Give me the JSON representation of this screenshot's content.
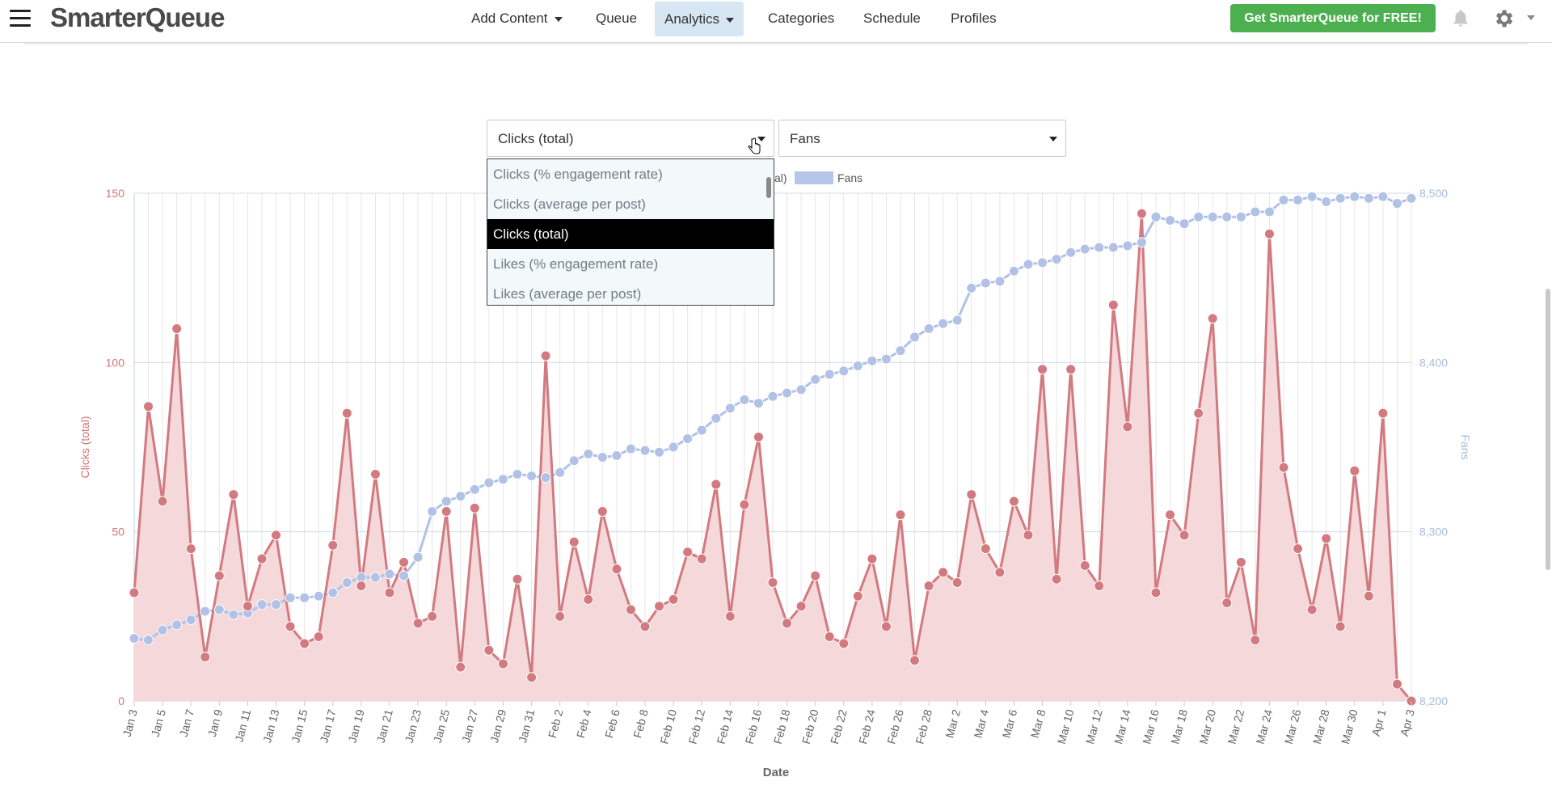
{
  "nav": {
    "logo": "SmarterQueue",
    "items": [
      {
        "label": "Add Content",
        "dropdown": true
      },
      {
        "label": "Queue",
        "dropdown": false
      },
      {
        "label": "Analytics",
        "dropdown": true,
        "active": true
      },
      {
        "label": "Categories",
        "dropdown": false
      },
      {
        "label": "Schedule",
        "dropdown": false
      },
      {
        "label": "Profiles",
        "dropdown": false
      }
    ],
    "cta": "Get SmarterQueue for FREE!"
  },
  "metric_select": {
    "left_value": "Clicks (total)",
    "right_value": "Fans",
    "options": [
      "Clicks (% engagement rate)",
      "Clicks (average per post)",
      "Clicks (total)",
      "Likes (% engagement rate)",
      "Likes (average per post)"
    ],
    "selected_index": 2
  },
  "colors": {
    "clicks": "#d27a80",
    "clicks_fill": "#f4d8da",
    "fans": "#b1c2e6",
    "accent_nav": "#d6e6f3",
    "cta": "#4caf50"
  },
  "chart_data": {
    "type": "line",
    "xlabel": "Date",
    "ylabel_left": "Clicks (total)",
    "ylabel_right": "Fans",
    "legend": {
      "partial_visible": "al)",
      "fans_label": "Fans"
    },
    "ylim_left": [
      0,
      150
    ],
    "ylim_right": [
      8200,
      8500
    ],
    "yticks_left": [
      0,
      50,
      100,
      150
    ],
    "yticks_right": [
      "8,200",
      "8,300",
      "8,400",
      "8,500"
    ],
    "tick_labels": [
      "Jan 3",
      "Jan 5",
      "Jan 7",
      "Jan 9",
      "Jan 11",
      "Jan 13",
      "Jan 15",
      "Jan 17",
      "Jan 19",
      "Jan 21",
      "Jan 23",
      "Jan 25",
      "Jan 27",
      "Jan 29",
      "Jan 31",
      "Feb 2",
      "Feb 4",
      "Feb 6",
      "Feb 8",
      "Feb 10",
      "Feb 12",
      "Feb 14",
      "Feb 16",
      "Feb 18",
      "Feb 20",
      "Feb 22",
      "Feb 24",
      "Feb 26",
      "Feb 28",
      "Mar 2",
      "Mar 4",
      "Mar 6",
      "Mar 8",
      "Mar 10",
      "Mar 12",
      "Mar 14",
      "Mar 16",
      "Mar 18",
      "Mar 20",
      "Mar 22",
      "Mar 24",
      "Mar 26",
      "Mar 28",
      "Mar 30",
      "Apr 1",
      "Apr 3"
    ],
    "series": [
      {
        "name": "Clicks (total)",
        "type": "area",
        "axis": "left",
        "values": [
          32,
          87,
          59,
          110,
          45,
          13,
          37,
          61,
          28,
          42,
          49,
          22,
          17,
          19,
          46,
          85,
          34,
          67,
          32,
          41,
          23,
          25,
          56,
          10,
          57,
          15,
          11,
          36,
          7,
          102,
          25,
          47,
          30,
          56,
          39,
          27,
          22,
          28,
          30,
          44,
          42,
          64,
          25,
          58,
          78,
          35,
          23,
          28,
          37,
          19,
          17,
          31,
          42,
          22,
          55,
          12,
          34,
          38,
          35,
          61,
          45,
          38,
          59,
          49,
          98,
          36,
          98,
          40,
          34,
          117,
          81,
          144,
          32,
          55,
          49,
          85,
          113,
          29,
          41,
          18,
          138,
          69,
          45,
          27,
          48,
          22,
          68,
          31,
          85,
          5,
          0
        ]
      },
      {
        "name": "Fans",
        "type": "line",
        "axis": "right",
        "values": [
          8237,
          8236,
          8242,
          8245,
          8248,
          8253,
          8254,
          8251,
          8252,
          8257,
          8257,
          8261,
          8261,
          8262,
          8264,
          8270,
          8273,
          8273,
          8275,
          8274,
          8285,
          8312,
          8318,
          8321,
          8325,
          8329,
          8331,
          8334,
          8333,
          8332,
          8335,
          8342,
          8346,
          8344,
          8345,
          8349,
          8348,
          8347,
          8350,
          8355,
          8360,
          8367,
          8373,
          8378,
          8376,
          8380,
          8382,
          8384,
          8390,
          8393,
          8395,
          8398,
          8401,
          8402,
          8407,
          8415,
          8420,
          8423,
          8425,
          8444,
          8447,
          8448,
          8454,
          8458,
          8459,
          8461,
          8465,
          8467,
          8468,
          8468,
          8469,
          8471,
          8486,
          8484,
          8482,
          8486,
          8486,
          8486,
          8486,
          8489,
          8489,
          8496,
          8496,
          8498,
          8495,
          8497,
          8498,
          8497,
          8498,
          8494,
          8497
        ]
      }
    ],
    "grid": true
  }
}
